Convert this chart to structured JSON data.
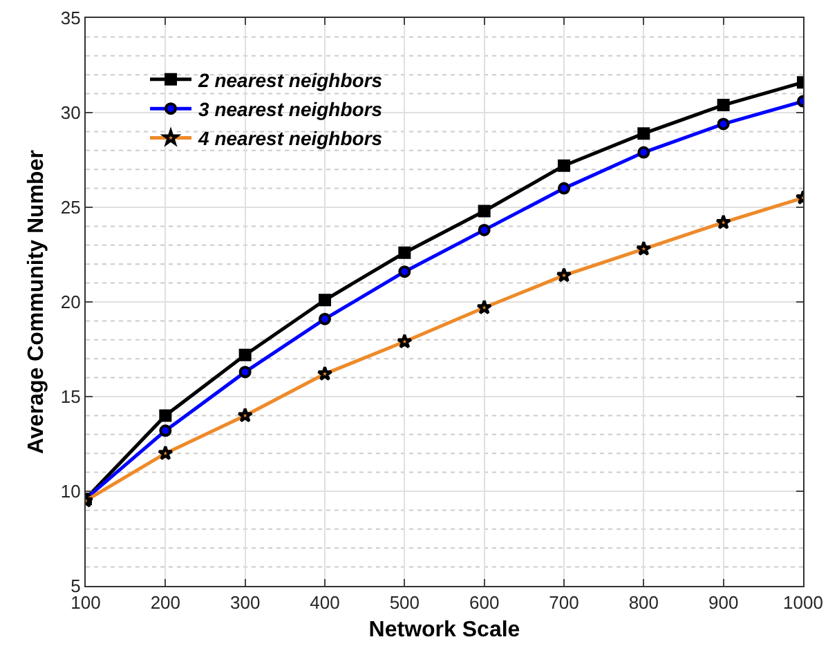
{
  "chart_data": {
    "type": "line",
    "xlabel": "Network Scale",
    "ylabel": "Average Community Number",
    "x": [
      100,
      200,
      300,
      400,
      500,
      600,
      700,
      800,
      900,
      1000
    ],
    "series": [
      {
        "name": "2 nearest neighbors",
        "color": "#000000",
        "marker": "square",
        "values": [
          9.6,
          14.0,
          17.2,
          20.1,
          22.6,
          24.8,
          27.2,
          28.9,
          30.4,
          31.6
        ]
      },
      {
        "name": "3 nearest neighbors",
        "color": "#0000ff",
        "marker": "circle",
        "values": [
          9.6,
          13.2,
          16.3,
          19.1,
          21.6,
          23.8,
          26.0,
          27.9,
          29.4,
          30.6
        ]
      },
      {
        "name": "4 nearest neighbors",
        "color": "#ee8a2a",
        "marker": "star",
        "values": [
          9.5,
          12.0,
          14.0,
          16.2,
          17.9,
          19.7,
          21.4,
          22.8,
          24.2,
          25.5
        ]
      }
    ],
    "xlim": [
      100,
      1000
    ],
    "xticks": [
      100,
      200,
      300,
      400,
      500,
      600,
      700,
      800,
      900,
      1000
    ],
    "ylim": [
      5,
      35
    ],
    "yticks": [
      5,
      10,
      15,
      20,
      25,
      30,
      35
    ],
    "grid": true,
    "legend": "top left",
    "line_style": "solid"
  }
}
